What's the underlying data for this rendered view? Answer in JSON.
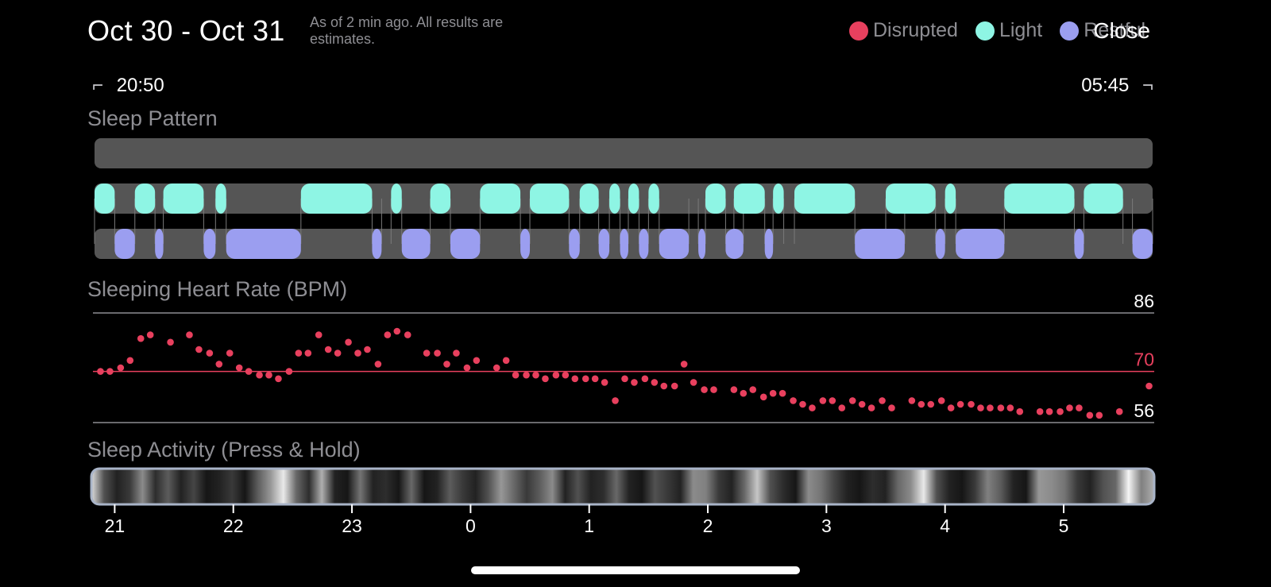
{
  "header": {
    "title": "Oct 30 - Oct 31",
    "subtitle": "As of 2 min ago. All results are estimates.",
    "close_label": "Close"
  },
  "legend": [
    {
      "label": "Disrupted",
      "color": "#e8405e"
    },
    {
      "label": "Light",
      "color": "#8ef5e4"
    },
    {
      "label": "Restful",
      "color": "#9b9ef0"
    }
  ],
  "time_range": {
    "start": "20:50",
    "end": "05:45"
  },
  "labels": {
    "sleep_pattern": "Sleep Pattern",
    "heart_rate": "Sleeping Heart Rate (BPM)",
    "sleep_activity": "Sleep Activity (Press & Hold)"
  },
  "chart_data": [
    {
      "type": "timeline",
      "title": "Sleep Pattern",
      "x_unit": "hours",
      "x_range": [
        20.83,
        29.75
      ],
      "lanes": [
        "Disrupted",
        "Light",
        "Restful"
      ],
      "segments": {
        "Disrupted": [],
        "Light": [
          [
            20.83,
            21.0
          ],
          [
            21.17,
            21.34
          ],
          [
            21.41,
            21.75
          ],
          [
            21.85,
            21.94
          ],
          [
            22.57,
            23.17
          ],
          [
            23.33,
            23.42
          ],
          [
            23.66,
            23.83
          ],
          [
            24.08,
            24.42
          ],
          [
            24.5,
            24.83
          ],
          [
            24.92,
            25.08
          ],
          [
            25.17,
            25.26
          ],
          [
            25.33,
            25.42
          ],
          [
            25.5,
            25.59
          ],
          [
            25.98,
            26.15
          ],
          [
            26.22,
            26.48
          ],
          [
            26.55,
            26.64
          ],
          [
            26.73,
            27.24
          ],
          [
            27.5,
            27.92
          ],
          [
            28.0,
            28.09
          ],
          [
            28.5,
            29.09
          ],
          [
            29.17,
            29.5
          ]
        ],
        "Restful": [
          [
            21.0,
            21.17
          ],
          [
            21.34,
            21.41
          ],
          [
            21.75,
            21.85
          ],
          [
            21.94,
            22.57
          ],
          [
            23.17,
            23.25
          ],
          [
            23.42,
            23.66
          ],
          [
            23.83,
            24.08
          ],
          [
            24.42,
            24.5
          ],
          [
            24.83,
            24.92
          ],
          [
            25.08,
            25.17
          ],
          [
            25.26,
            25.33
          ],
          [
            25.42,
            25.5
          ],
          [
            25.59,
            25.84
          ],
          [
            25.92,
            25.98
          ],
          [
            26.15,
            26.3
          ],
          [
            26.48,
            26.55
          ],
          [
            27.24,
            27.66
          ],
          [
            27.92,
            28.0
          ],
          [
            28.09,
            28.5
          ],
          [
            29.09,
            29.17
          ],
          [
            29.58,
            29.75
          ]
        ]
      }
    },
    {
      "type": "scatter",
      "title": "Sleeping Heart Rate (BPM)",
      "x_unit": "hours",
      "y_unit": "BPM",
      "ylim": [
        56,
        86
      ],
      "reference_lines": [
        {
          "value": 86,
          "label": "86"
        },
        {
          "value": 70,
          "label": "70"
        },
        {
          "value": 56,
          "label": "56"
        }
      ],
      "x": [
        20.88,
        20.96,
        21.05,
        21.13,
        21.22,
        21.3,
        21.47,
        21.63,
        21.71,
        21.8,
        21.88,
        21.97,
        22.05,
        22.13,
        22.22,
        22.3,
        22.38,
        22.47,
        22.55,
        22.63,
        22.72,
        22.8,
        22.88,
        22.97,
        23.05,
        23.13,
        23.22,
        23.3,
        23.38,
        23.47,
        23.63,
        23.72,
        23.8,
        23.88,
        23.97,
        24.05,
        24.22,
        24.3,
        24.38,
        24.47,
        24.55,
        24.63,
        24.72,
        24.8,
        24.88,
        24.97,
        25.05,
        25.13,
        25.22,
        25.3,
        25.38,
        25.47,
        25.55,
        25.63,
        25.72,
        25.8,
        25.88,
        25.97,
        26.05,
        26.22,
        26.3,
        26.38,
        26.47,
        26.55,
        26.63,
        26.72,
        26.8,
        26.88,
        26.97,
        27.05,
        27.13,
        27.22,
        27.3,
        27.38,
        27.47,
        27.55,
        27.72,
        27.8,
        27.88,
        27.97,
        28.05,
        28.13,
        28.22,
        28.3,
        28.38,
        28.47,
        28.55,
        28.63,
        28.8,
        28.88,
        28.97,
        29.05,
        29.13,
        29.22,
        29.3,
        29.47,
        29.72
      ],
      "y": [
        70,
        70,
        71,
        73,
        79,
        80,
        78,
        80,
        76,
        75,
        72,
        75,
        71,
        70,
        69,
        69,
        68,
        70,
        75,
        75,
        80,
        76,
        75,
        78,
        75,
        76,
        72,
        80,
        81,
        80,
        75,
        75,
        72,
        75,
        71,
        73,
        71,
        73,
        69,
        69,
        69,
        68,
        69,
        69,
        68,
        68,
        68,
        67,
        62,
        68,
        67,
        68,
        67,
        66,
        66,
        72,
        67,
        65,
        65,
        65,
        64,
        65,
        63,
        64,
        64,
        62,
        61,
        60,
        62,
        62,
        60,
        62,
        61,
        60,
        62,
        60,
        62,
        61,
        61,
        62,
        60,
        61,
        61,
        60,
        60,
        60,
        60,
        59,
        59,
        59,
        59,
        60,
        60,
        58,
        58,
        59,
        66
      ]
    },
    {
      "type": "heatmap",
      "title": "Sleep Activity (Press & Hold)",
      "x_ticks": [
        "21",
        "22",
        "23",
        "0",
        "1",
        "2",
        "3",
        "4",
        "5"
      ]
    }
  ]
}
